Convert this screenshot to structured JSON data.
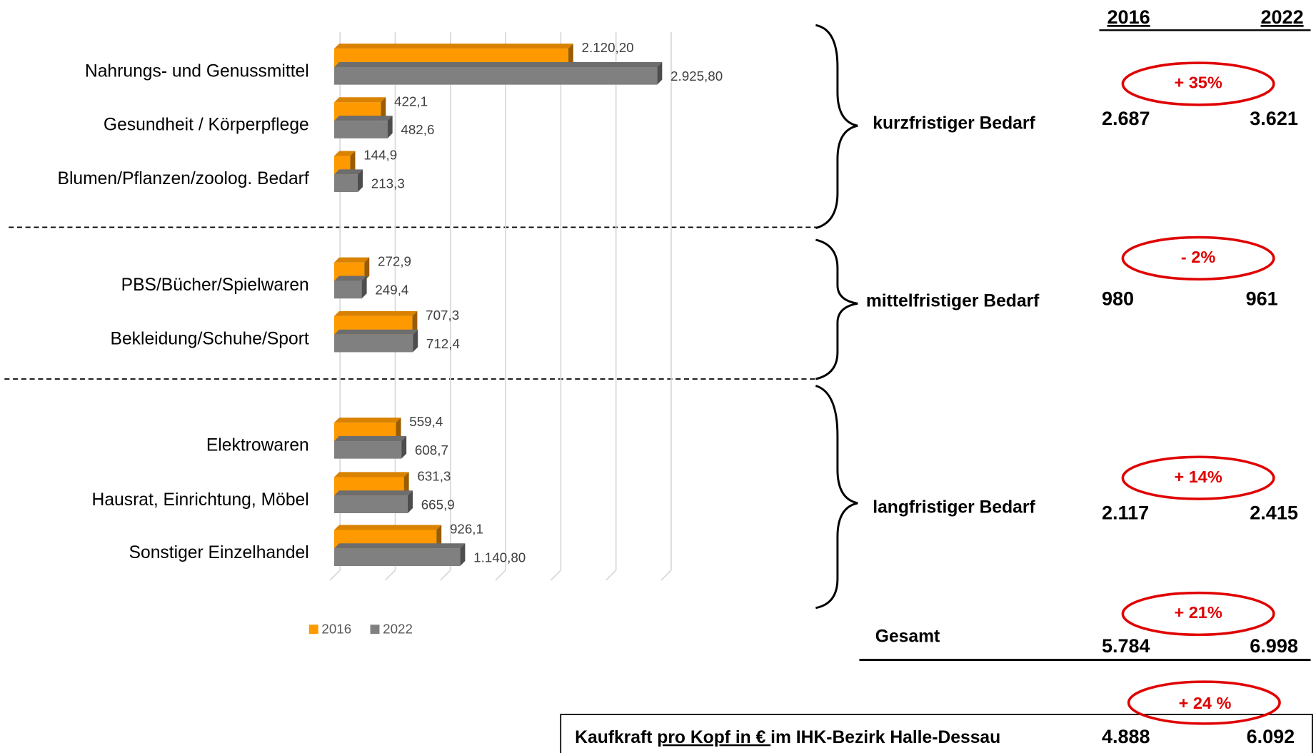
{
  "chart_data": {
    "type": "bar",
    "orientation": "horizontal",
    "categories": [
      "Nahrungs- und Genussmittel",
      "Gesundheit / Körperpflege",
      "Blumen/Pflanzen/zoolog. Bedarf",
      "PBS/Bücher/Spielwaren",
      "Bekleidung/Schuhe/Sport",
      "Elektrowaren",
      "Hausrat, Einrichtung, Möbel",
      "Sonstiger Einzelhandel"
    ],
    "series": [
      {
        "name": "2016",
        "color": "#ff9900",
        "values": [
          2120.2,
          422.1,
          144.9,
          272.9,
          707.3,
          559.4,
          631.3,
          926.1
        ],
        "value_labels": [
          "2.120,20",
          "422,1",
          "144,9",
          "272,9",
          "707,3",
          "559,4",
          "631,3",
          "926,1"
        ]
      },
      {
        "name": "2022",
        "color": "#808080",
        "values": [
          2925.8,
          482.6,
          213.3,
          249.4,
          712.4,
          608.7,
          665.9,
          1140.8
        ],
        "value_labels": [
          "2.925,80",
          "482,6",
          "213,3",
          "249,4",
          "712,4",
          "608,7",
          "665,9",
          "1.140,80"
        ]
      }
    ],
    "xlim": [
      0,
      3000
    ],
    "xticks": [
      0,
      500,
      1000,
      1500,
      2000,
      2500,
      3000
    ],
    "grid": true,
    "legend": "bottom"
  },
  "panel": {
    "headers": [
      "2016",
      "2022"
    ],
    "groups": [
      {
        "label": "kurzfristiger Bedarf",
        "v2016": "2.687",
        "v2022": "3.621",
        "change": "+ 35%"
      },
      {
        "label": "mittelfristiger Bedarf",
        "v2016": "980",
        "v2022": "961",
        "change": "- 2%"
      },
      {
        "label": "langfristiger Bedarf",
        "v2016": "2.117",
        "v2022": "2.415",
        "change": "+ 14%"
      },
      {
        "label": "Gesamt",
        "v2016": "5.784",
        "v2022": "6.998",
        "change": "+ 21%"
      }
    ],
    "kaufkraft": {
      "label_parts": [
        "Kaufkraft ",
        "pro Kopf in € ",
        "im IHK-Bezirk Halle-Dessau"
      ],
      "v2016": "4.888",
      "v2022": "6.092",
      "change": "+ 24 %"
    }
  }
}
